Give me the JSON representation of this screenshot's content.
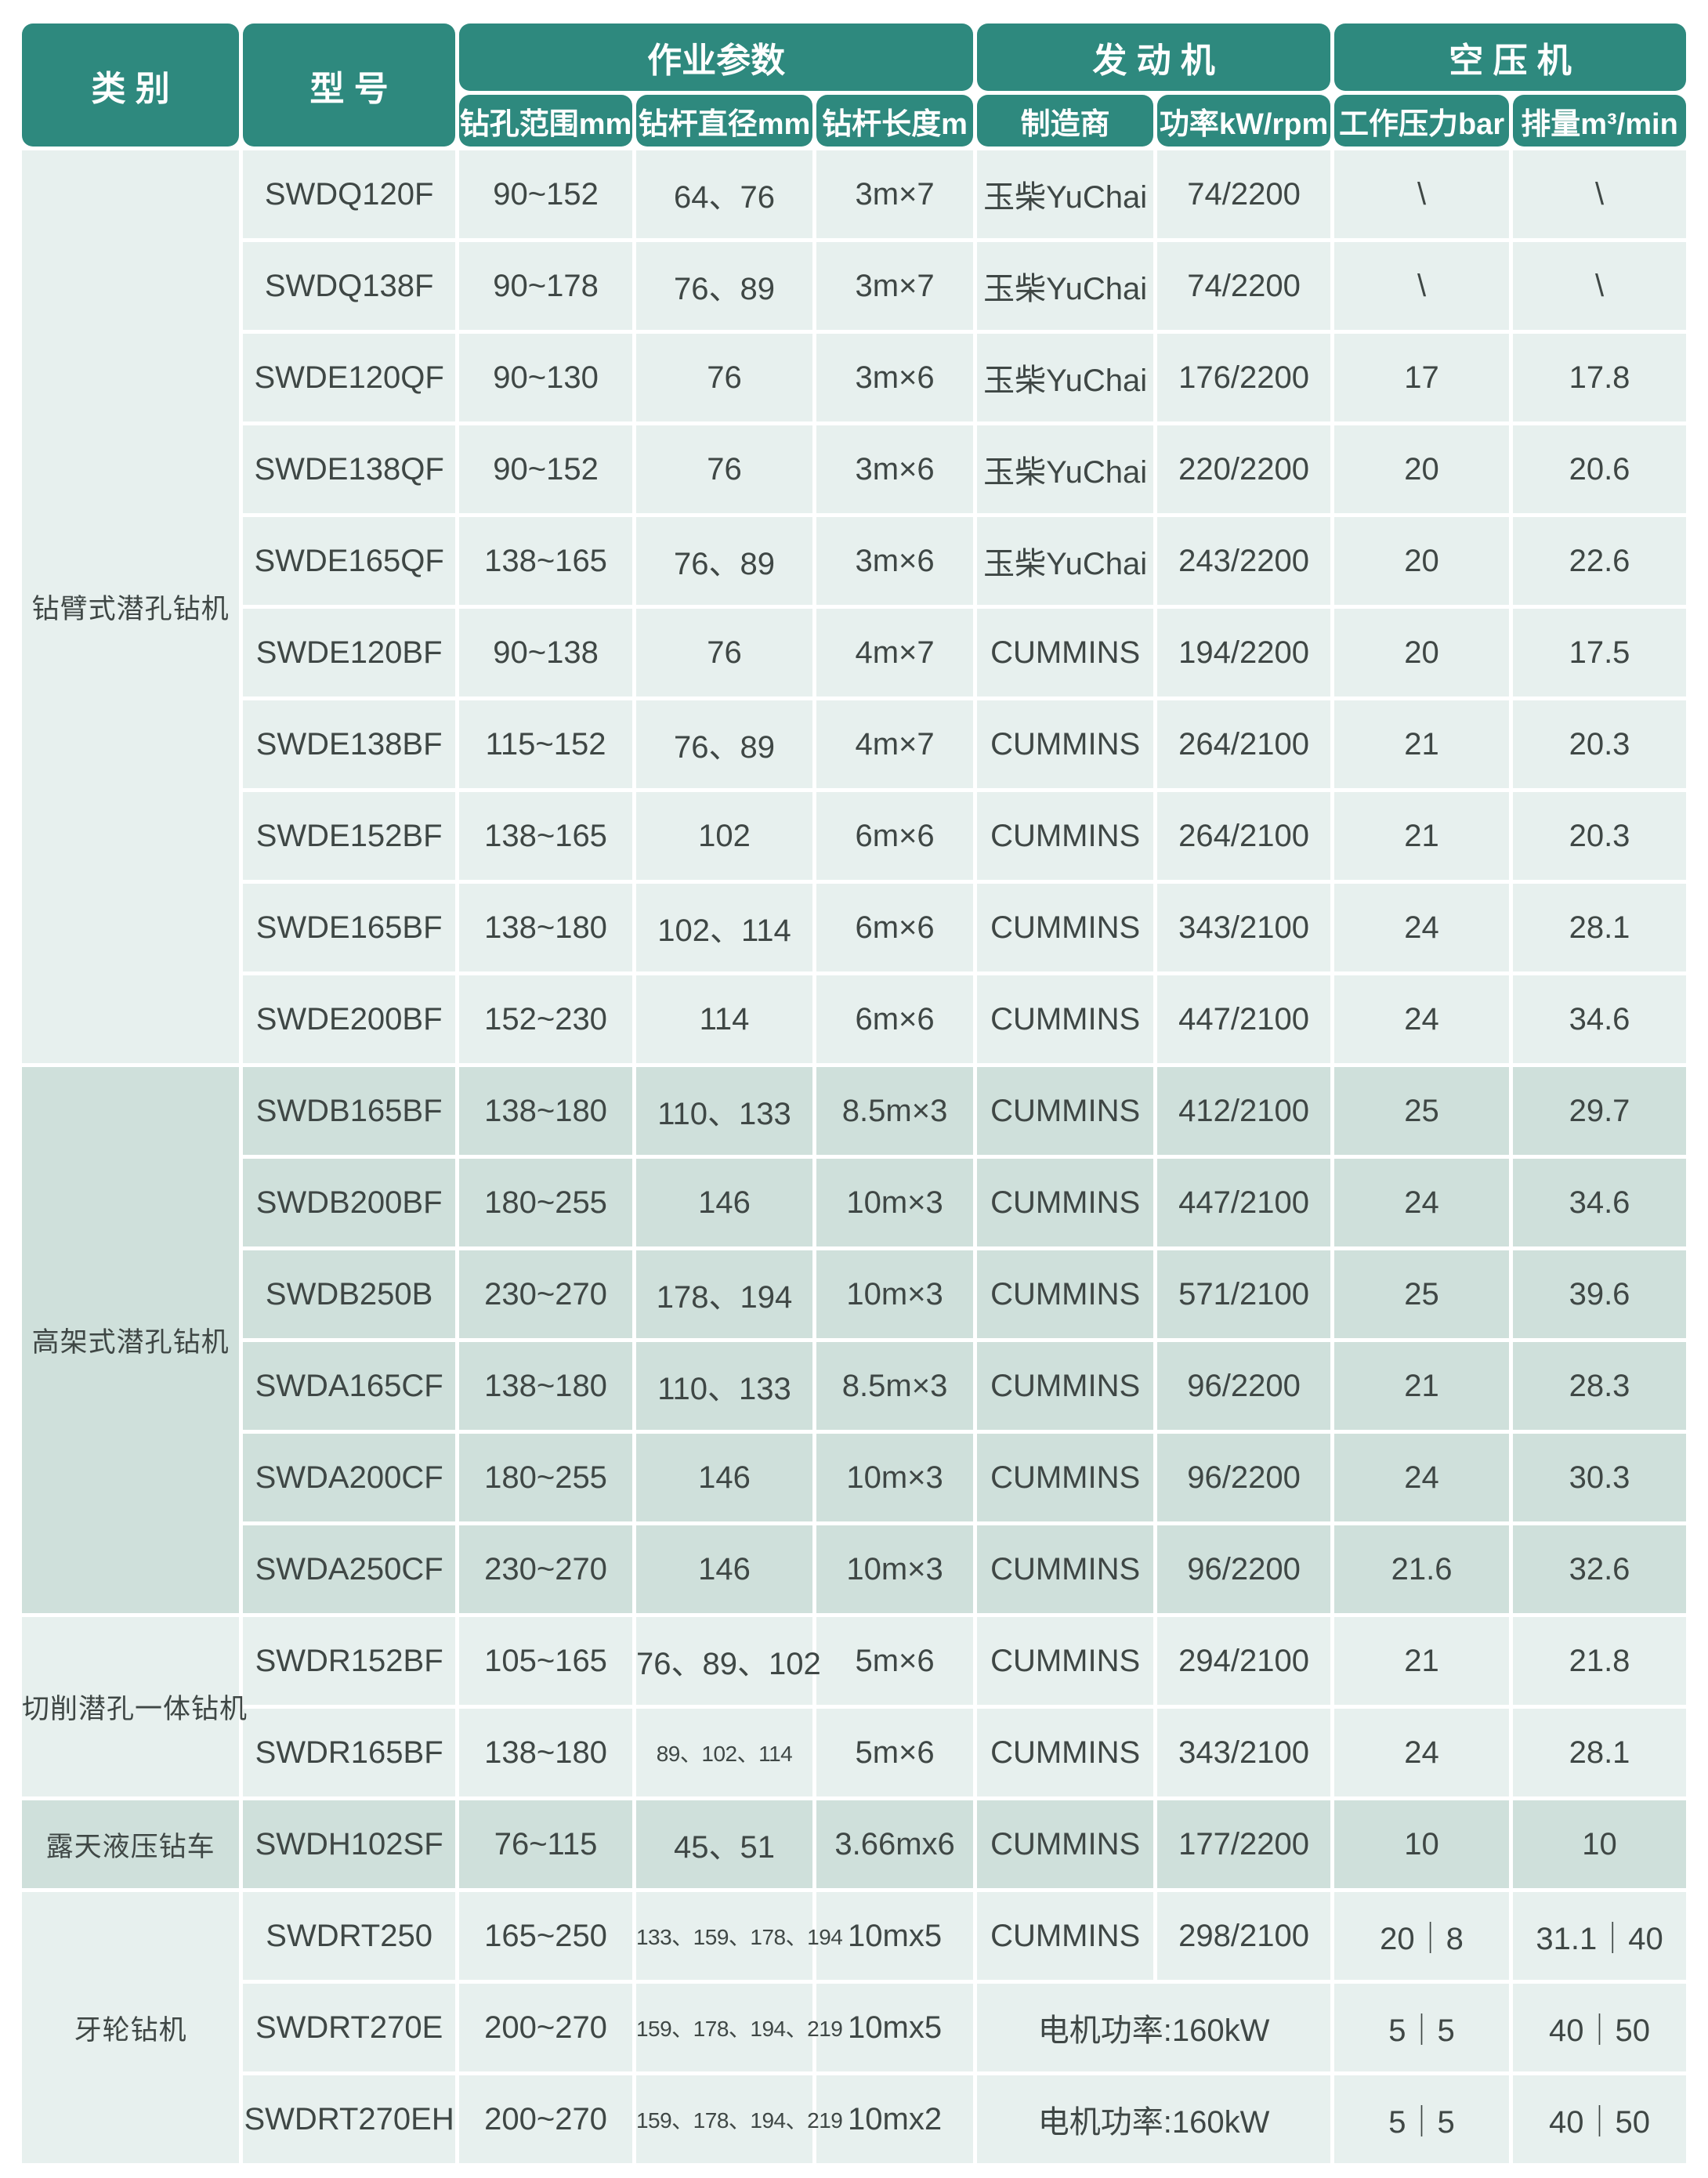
{
  "colors": {
    "header_bg": "#2E897E",
    "header_text": "#FFFFFF",
    "row_light": "#E7F0EE",
    "row_dark": "#CFE0DB",
    "text": "#3F4745",
    "page_bg": "#FFFFFF"
  },
  "table": {
    "header": {
      "category": "类 别",
      "model": "型 号",
      "groups": [
        {
          "label": "作业参数"
        },
        {
          "label": "发 动 机"
        },
        {
          "label": "空 压 机"
        }
      ],
      "sub_columns": [
        "钻孔范围mm",
        "钻杆直径mm",
        "钻杆长度m",
        "制造商",
        "功率kW/rpm",
        "工作压力bar",
        "排量m³/min"
      ]
    },
    "sections": [
      {
        "category": "钻臂式潜孔钻机",
        "tone": "light",
        "rows": [
          {
            "model": "SWDQ120F",
            "drill_range": "90~152",
            "pipe_diameter": "64、76",
            "pipe_length": "3m×7",
            "manufacturer": "玉柴YuChai",
            "power": "74/2200",
            "pressure": "\\",
            "displacement": "\\"
          },
          {
            "model": "SWDQ138F",
            "drill_range": "90~178",
            "pipe_diameter": "76、89",
            "pipe_length": "3m×7",
            "manufacturer": "玉柴YuChai",
            "power": "74/2200",
            "pressure": "\\",
            "displacement": "\\"
          },
          {
            "model": "SWDE120QF",
            "drill_range": "90~130",
            "pipe_diameter": "76",
            "pipe_length": "3m×6",
            "manufacturer": "玉柴YuChai",
            "power": "176/2200",
            "pressure": "17",
            "displacement": "17.8"
          },
          {
            "model": "SWDE138QF",
            "drill_range": "90~152",
            "pipe_diameter": "76",
            "pipe_length": "3m×6",
            "manufacturer": "玉柴YuChai",
            "power": "220/2200",
            "pressure": "20",
            "displacement": "20.6"
          },
          {
            "model": "SWDE165QF",
            "drill_range": "138~165",
            "pipe_diameter": "76、89",
            "pipe_length": "3m×6",
            "manufacturer": "玉柴YuChai",
            "power": "243/2200",
            "pressure": "20",
            "displacement": "22.6"
          },
          {
            "model": "SWDE120BF",
            "drill_range": "90~138",
            "pipe_diameter": "76",
            "pipe_length": "4m×7",
            "manufacturer": "CUMMINS",
            "power": "194/2200",
            "pressure": "20",
            "displacement": "17.5"
          },
          {
            "model": "SWDE138BF",
            "drill_range": "115~152",
            "pipe_diameter": "76、89",
            "pipe_length": "4m×7",
            "manufacturer": "CUMMINS",
            "power": "264/2100",
            "pressure": "21",
            "displacement": "20.3"
          },
          {
            "model": "SWDE152BF",
            "drill_range": "138~165",
            "pipe_diameter": "102",
            "pipe_length": "6m×6",
            "manufacturer": "CUMMINS",
            "power": "264/2100",
            "pressure": "21",
            "displacement": "20.3"
          },
          {
            "model": "SWDE165BF",
            "drill_range": "138~180",
            "pipe_diameter": "102、114",
            "pipe_length": "6m×6",
            "manufacturer": "CUMMINS",
            "power": "343/2100",
            "pressure": "24",
            "displacement": "28.1"
          },
          {
            "model": "SWDE200BF",
            "drill_range": "152~230",
            "pipe_diameter": "114",
            "pipe_length": "6m×6",
            "manufacturer": "CUMMINS",
            "power": "447/2100",
            "pressure": "24",
            "displacement": "34.6"
          }
        ]
      },
      {
        "category": "高架式潜孔钻机",
        "tone": "dark",
        "rows": [
          {
            "model": "SWDB165BF",
            "drill_range": "138~180",
            "pipe_diameter": "110、133",
            "pipe_length": "8.5m×3",
            "manufacturer": "CUMMINS",
            "power": "412/2100",
            "pressure": "25",
            "displacement": "29.7"
          },
          {
            "model": "SWDB200BF",
            "drill_range": "180~255",
            "pipe_diameter": "146",
            "pipe_length": "10m×3",
            "manufacturer": "CUMMINS",
            "power": "447/2100",
            "pressure": "24",
            "displacement": "34.6"
          },
          {
            "model": "SWDB250B",
            "drill_range": "230~270",
            "pipe_diameter": "178、194",
            "pipe_length": "10m×3",
            "manufacturer": "CUMMINS",
            "power": "571/2100",
            "pressure": "25",
            "displacement": "39.6"
          },
          {
            "model": "SWDA165CF",
            "drill_range": "138~180",
            "pipe_diameter": "110、133",
            "pipe_length": "8.5m×3",
            "manufacturer": "CUMMINS",
            "power": "96/2200",
            "pressure": "21",
            "displacement": "28.3"
          },
          {
            "model": "SWDA200CF",
            "drill_range": "180~255",
            "pipe_diameter": "146",
            "pipe_length": "10m×3",
            "manufacturer": "CUMMINS",
            "power": "96/2200",
            "pressure": "24",
            "displacement": "30.3"
          },
          {
            "model": "SWDA250CF",
            "drill_range": "230~270",
            "pipe_diameter": "146",
            "pipe_length": "10m×3",
            "manufacturer": "CUMMINS",
            "power": "96/2200",
            "pressure": "21.6",
            "displacement": "32.6"
          }
        ]
      },
      {
        "category": "切削潜孔一体钻机",
        "tone": "light",
        "rows": [
          {
            "model": "SWDR152BF",
            "drill_range": "105~165",
            "pipe_diameter": "76、89、102",
            "pipe_length": "5m×6",
            "manufacturer": "CUMMINS",
            "power": "294/2100",
            "pressure": "21",
            "displacement": "21.8"
          },
          {
            "model": "SWDR165BF",
            "drill_range": "138~180",
            "pipe_diameter": "89、102、114",
            "pipe_length": "5m×6",
            "manufacturer": "CUMMINS",
            "power": "343/2100",
            "pressure": "24",
            "displacement": "28.1"
          }
        ]
      },
      {
        "category": "露天液压钻车",
        "tone": "dark",
        "rows": [
          {
            "model": "SWDH102SF",
            "drill_range": "76~115",
            "pipe_diameter": "45、51",
            "pipe_length": "3.66mx6",
            "manufacturer": "CUMMINS",
            "power": "177/2200",
            "pressure": "10",
            "displacement": "10"
          }
        ]
      },
      {
        "category": "牙轮钻机",
        "tone": "light",
        "rows": [
          {
            "model": "SWDRT250",
            "drill_range": "165~250",
            "pipe_diameter": "133、159、178、194",
            "pipe_length": "10mx5",
            "manufacturer": "CUMMINS",
            "power": "298/2100",
            "pressure": "20｜8",
            "displacement": "31.1｜40"
          },
          {
            "model": "SWDRT270E",
            "drill_range": "200~270",
            "pipe_diameter": "159、178、194、219",
            "pipe_length": "10mx5",
            "engine_merged": "电机功率:160kW",
            "pressure": "5｜5",
            "displacement": "40｜50"
          },
          {
            "model": "SWDRT270EH",
            "drill_range": "200~270",
            "pipe_diameter": "159、178、194、219",
            "pipe_length": "10mx2",
            "engine_merged": "电机功率:160kW",
            "pressure": "5｜5",
            "displacement": "40｜50"
          }
        ]
      }
    ]
  }
}
